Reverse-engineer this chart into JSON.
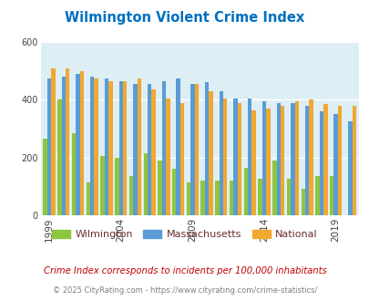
{
  "title": "Wilmington Violent Crime Index",
  "subtitle": "Crime Index corresponds to incidents per 100,000 inhabitants",
  "footer": "© 2025 CityRating.com - https://www.cityrating.com/crime-statistics/",
  "years": [
    1999,
    2000,
    2001,
    2002,
    2003,
    2004,
    2005,
    2006,
    2007,
    2008,
    2009,
    2010,
    2011,
    2012,
    2013,
    2014,
    2015,
    2016,
    2017,
    2018,
    2019,
    2020
  ],
  "wilmington": [
    265,
    400,
    285,
    115,
    205,
    200,
    135,
    215,
    190,
    160,
    115,
    120,
    120,
    120,
    165,
    125,
    190,
    125,
    90,
    135,
    135,
    0
  ],
  "massachusetts": [
    475,
    480,
    490,
    480,
    475,
    465,
    455,
    455,
    465,
    475,
    455,
    460,
    430,
    405,
    405,
    395,
    390,
    390,
    380,
    360,
    350,
    325
  ],
  "national": [
    510,
    510,
    500,
    475,
    465,
    465,
    475,
    435,
    405,
    390,
    455,
    430,
    405,
    390,
    365,
    370,
    380,
    395,
    400,
    385,
    380,
    380
  ],
  "wilmington_color": "#8dc63f",
  "massachusetts_color": "#5b9bd5",
  "national_color": "#f0a830",
  "title_color": "#0070c0",
  "subtitle_color": "#c00000",
  "footer_color": "#808080",
  "bg_color": "#ddeef5",
  "fig_bg": "#ffffff",
  "ylim": [
    0,
    600
  ],
  "yticks": [
    0,
    200,
    400,
    600
  ],
  "bar_width": 0.28,
  "tick_years": [
    1999,
    2004,
    2009,
    2014,
    2019
  ]
}
